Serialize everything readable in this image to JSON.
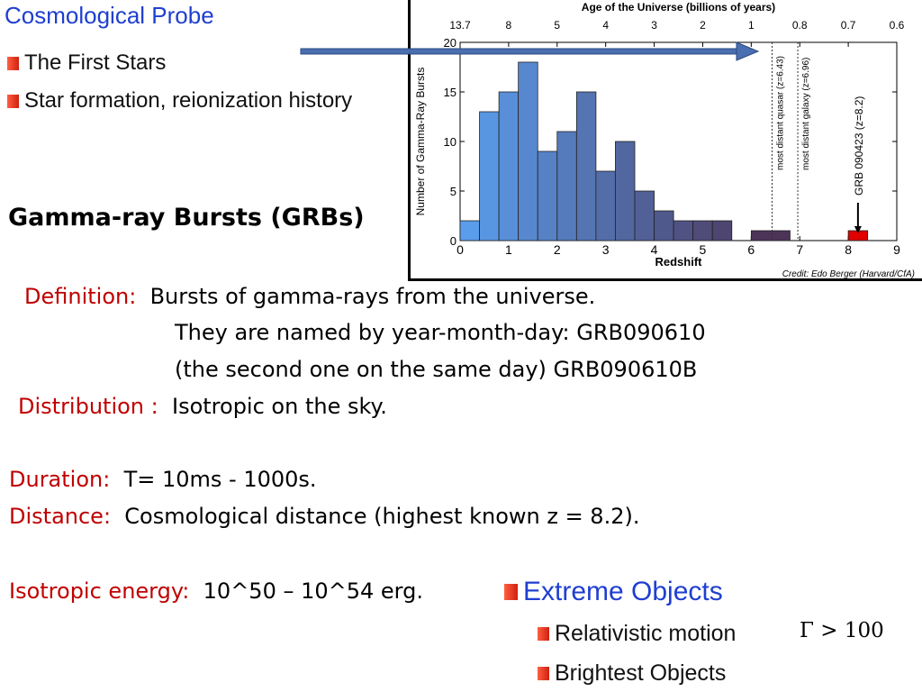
{
  "slide": {
    "title": "Cosmological Probe",
    "bullets_top": [
      "The First Stars",
      "Star formation,  reionization history"
    ],
    "heading": "Gamma-ray Bursts (GRBs)",
    "definition_label": "Definition:",
    "definition_text": "Bursts of gamma-rays from the universe.",
    "naming_line1": "They are named by year-month-day: GRB090610",
    "naming_line2": "(the second one on the same day)    GRB090610B",
    "distribution_label": "Distribution :",
    "distribution_text": "Isotropic on the sky.",
    "duration_label": "Duration:",
    "duration_text": "T= 10ms - 1000s.",
    "distance_label": "Distance:",
    "distance_text": "Cosmological distance (highest known z = 8.2).",
    "energy_label": "Isotropic energy:",
    "energy_text": "10^50 – 10^54 erg.",
    "extreme_title": "Extreme Objects",
    "extreme_bullets": [
      "Relativistic motion",
      "Brightest Objects"
    ],
    "gamma_expr": "Γ > 100"
  },
  "colors": {
    "bullet": "#e0301e",
    "blue_title": "#1f3fd0",
    "label_red": "#c00000",
    "arrow": "#4a6fb0",
    "grb_bar": "#e00000"
  },
  "chart_data": {
    "type": "bar",
    "title": "Age of the Universe  (billions of years)",
    "xlabel": "Redshift",
    "ylabel": "Number of Gamma-Ray Bursts",
    "credit": "Credit:  Edo Berger (Harvard/CfA)",
    "xlim": [
      0,
      9
    ],
    "ylim": [
      0,
      20
    ],
    "x_ticks": [
      0,
      1,
      2,
      3,
      4,
      5,
      6,
      7,
      8,
      9
    ],
    "y_ticks": [
      0,
      5,
      10,
      15,
      20
    ],
    "top_ticks": [
      "13.7",
      "8",
      "5",
      "4",
      "3",
      "2",
      "1",
      "0.8",
      "0.7",
      "0.6"
    ],
    "bins": [
      {
        "x0": 0.0,
        "x1": 0.4,
        "value": 2
      },
      {
        "x0": 0.4,
        "x1": 0.8,
        "value": 13
      },
      {
        "x0": 0.8,
        "x1": 1.2,
        "value": 15
      },
      {
        "x0": 1.2,
        "x1": 1.6,
        "value": 18
      },
      {
        "x0": 1.6,
        "x1": 2.0,
        "value": 9
      },
      {
        "x0": 2.0,
        "x1": 2.4,
        "value": 11
      },
      {
        "x0": 2.4,
        "x1": 2.8,
        "value": 15
      },
      {
        "x0": 2.8,
        "x1": 3.2,
        "value": 7
      },
      {
        "x0": 3.2,
        "x1": 3.6,
        "value": 10
      },
      {
        "x0": 3.6,
        "x1": 4.0,
        "value": 5
      },
      {
        "x0": 4.0,
        "x1": 4.4,
        "value": 3
      },
      {
        "x0": 4.4,
        "x1": 4.8,
        "value": 2
      },
      {
        "x0": 4.8,
        "x1": 5.2,
        "value": 2
      },
      {
        "x0": 5.2,
        "x1": 5.6,
        "value": 2
      },
      {
        "x0": 6.0,
        "x1": 6.8,
        "value": 1
      }
    ],
    "grb_bar": {
      "x0": 8.0,
      "x1": 8.4,
      "value": 1
    },
    "annotations": [
      {
        "x": 6.43,
        "text": "most distant quasar (z=6.43)"
      },
      {
        "x": 6.96,
        "text": "most distant galaxy (z=6.96)"
      },
      {
        "x": 8.2,
        "text": "GRB 090423  (z=8.2)"
      }
    ],
    "gradient": [
      "#5aa0f0",
      "#4a2a4a"
    ]
  }
}
